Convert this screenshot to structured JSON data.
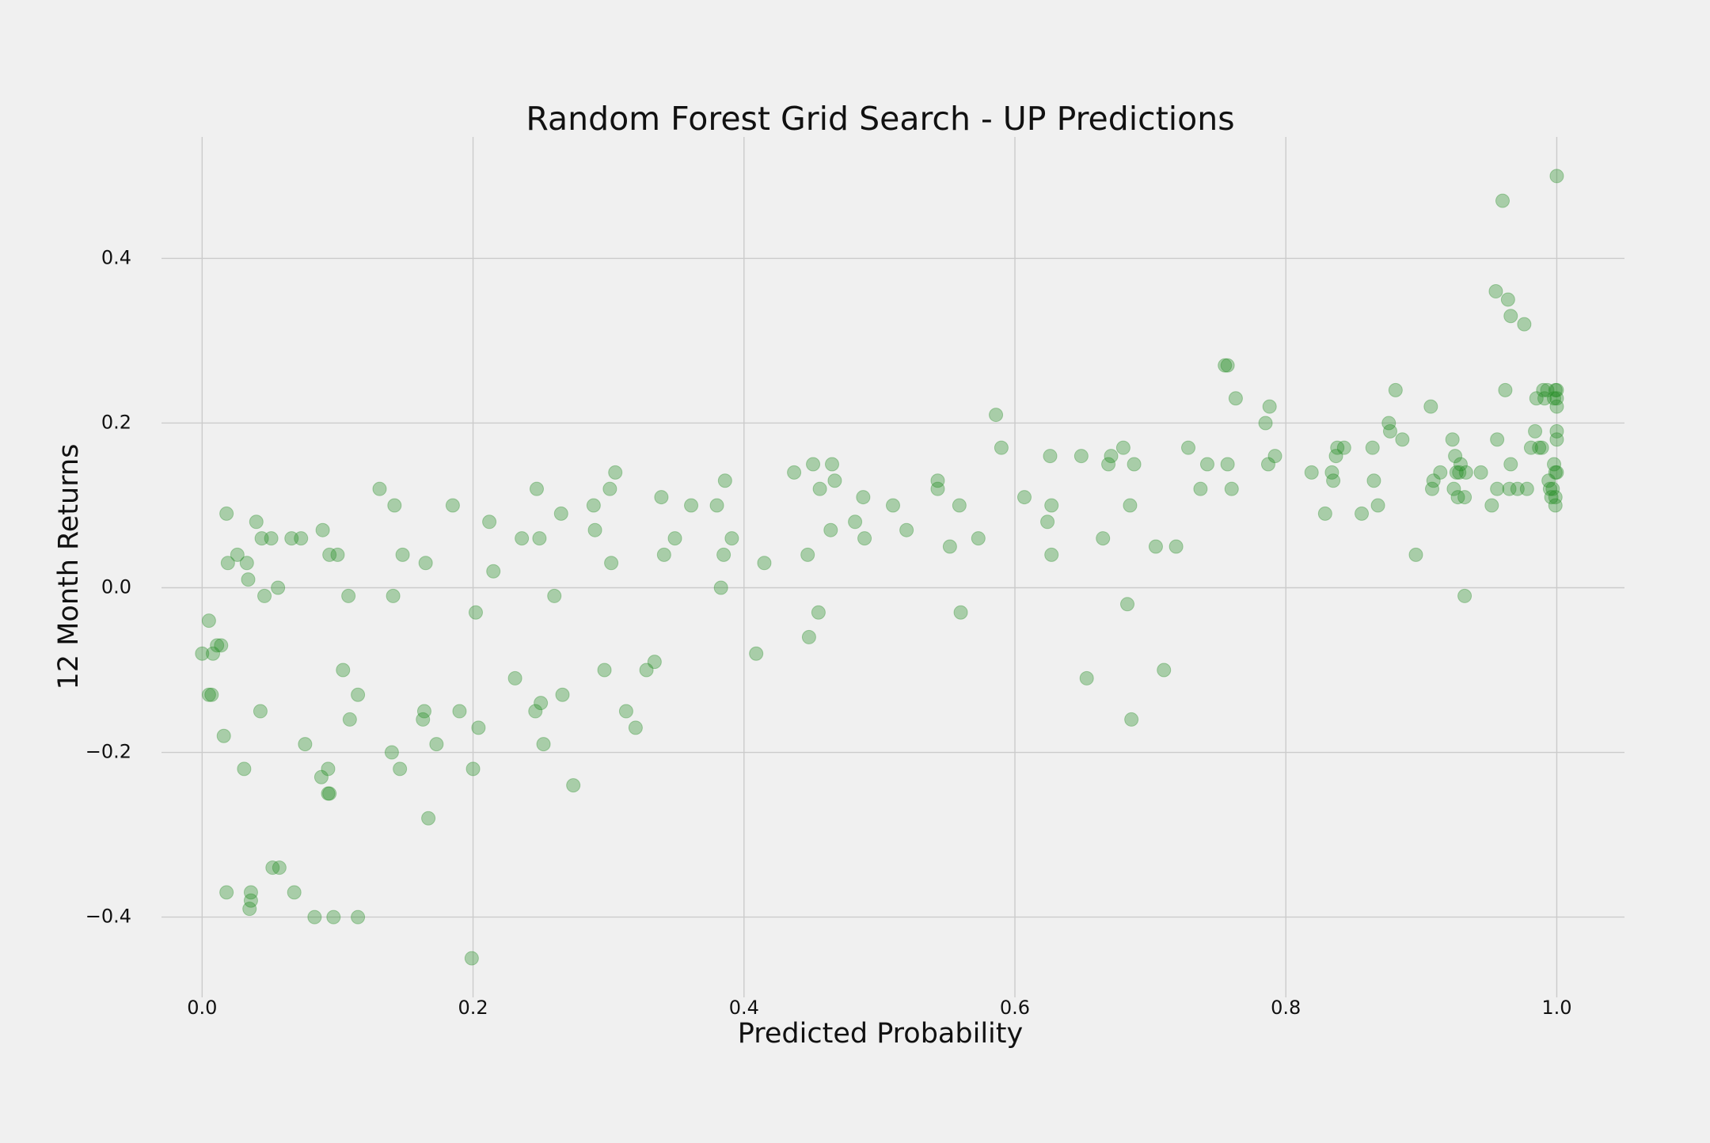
{
  "chart_data": {
    "type": "scatter",
    "title": "Random Forest Grid Search - UP Predictions",
    "x_label": "Predicted Probability",
    "y_label": "12 Month Returns",
    "color": "#228b22",
    "grid": true,
    "xlim": [
      -0.03,
      1.05
    ],
    "ylim": [
      -0.4975,
      0.5475
    ],
    "xticks": [
      {
        "value": 0,
        "label": "0.0"
      },
      0.2,
      0.4,
      0.6,
      0.8,
      {
        "value": 1,
        "label": "1.0"
      }
    ],
    "yticks": [
      {
        "value": -0.4,
        "label": "−0.4"
      },
      {
        "value": -0.2,
        "label": "−0.2"
      },
      {
        "value": 0,
        "label": "0.0"
      },
      0.2,
      0.4
    ],
    "x": [
      0.0,
      0.005,
      0.005,
      0.007,
      0.008,
      0.011,
      0.014,
      0.016,
      0.018,
      0.019,
      0.018,
      0.026,
      0.031,
      0.033,
      0.034,
      0.035,
      0.036,
      0.036,
      0.04,
      0.043,
      0.044,
      0.046,
      0.051,
      0.052,
      0.056,
      0.057,
      0.066,
      0.068,
      0.073,
      0.076,
      0.083,
      0.088,
      0.089,
      0.093,
      0.093,
      0.094,
      0.094,
      0.097,
      0.1,
      0.104,
      0.108,
      0.109,
      0.115,
      0.115,
      0.131,
      0.14,
      0.141,
      0.142,
      0.146,
      0.148,
      0.163,
      0.164,
      0.165,
      0.167,
      0.173,
      0.185,
      0.19,
      0.199,
      0.2,
      0.202,
      0.204,
      0.212,
      0.215,
      0.231,
      0.236,
      0.246,
      0.247,
      0.249,
      0.25,
      0.252,
      0.26,
      0.265,
      0.266,
      0.274,
      0.289,
      0.29,
      0.297,
      0.301,
      0.302,
      0.305,
      0.313,
      0.32,
      0.328,
      0.334,
      0.339,
      0.341,
      0.349,
      0.361,
      0.38,
      0.383,
      0.385,
      0.386,
      0.391,
      0.409,
      0.415,
      0.437,
      0.447,
      0.448,
      0.451,
      0.455,
      0.456,
      0.464,
      0.465,
      0.467,
      0.482,
      0.488,
      0.489,
      0.51,
      0.52,
      0.543,
      0.543,
      0.552,
      0.559,
      0.56,
      0.573,
      0.586,
      0.59,
      0.607,
      0.624,
      0.626,
      0.627,
      0.627,
      0.649,
      0.653,
      0.665,
      0.669,
      0.671,
      0.68,
      0.683,
      0.685,
      0.686,
      0.688,
      0.704,
      0.71,
      0.719,
      0.728,
      0.737,
      0.742,
      0.755,
      0.757,
      0.757,
      0.76,
      0.763,
      0.785,
      0.787,
      0.788,
      0.792,
      0.819,
      0.829,
      0.834,
      0.835,
      0.837,
      0.838,
      0.843,
      0.856,
      0.864,
      0.865,
      0.868,
      0.876,
      0.877,
      0.881,
      0.886,
      0.896,
      0.907,
      0.908,
      0.909,
      0.914,
      0.923,
      0.924,
      0.925,
      0.926,
      0.928,
      0.927,
      0.929,
      0.932,
      0.932,
      0.933,
      0.944,
      0.952,
      0.955,
      0.956,
      0.956,
      0.96,
      0.962,
      0.964,
      0.965,
      0.966,
      0.966,
      0.971,
      0.976,
      0.978,
      0.981,
      0.984,
      0.985,
      0.987,
      0.989,
      0.99,
      0.991,
      0.993,
      0.994,
      0.995,
      0.996,
      0.997,
      0.998,
      0.998,
      0.999,
      0.999,
      0.999,
      0.999,
      1.0,
      1.0,
      1.0,
      1.0,
      1.0,
      1.0,
      1.0
    ],
    "values": [
      -0.08,
      -0.04,
      -0.13,
      -0.13,
      -0.08,
      -0.07,
      -0.07,
      -0.18,
      0.09,
      0.03,
      -0.37,
      0.04,
      -0.22,
      0.03,
      0.01,
      -0.39,
      -0.38,
      -0.37,
      0.08,
      -0.15,
      0.06,
      -0.01,
      0.06,
      -0.34,
      0.0,
      -0.34,
      0.06,
      -0.37,
      0.06,
      -0.19,
      -0.4,
      -0.23,
      0.07,
      -0.22,
      -0.25,
      -0.25,
      0.04,
      -0.4,
      0.04,
      -0.1,
      -0.01,
      -0.16,
      -0.13,
      -0.4,
      0.12,
      -0.2,
      -0.01,
      0.1,
      -0.22,
      0.04,
      -0.16,
      -0.15,
      0.03,
      -0.28,
      -0.19,
      0.1,
      -0.15,
      -0.45,
      -0.22,
      -0.03,
      -0.17,
      0.08,
      0.02,
      -0.11,
      0.06,
      -0.15,
      0.12,
      0.06,
      -0.14,
      -0.19,
      -0.01,
      0.09,
      -0.13,
      -0.24,
      0.1,
      0.07,
      -0.1,
      0.12,
      0.03,
      0.14,
      -0.15,
      -0.17,
      -0.1,
      -0.09,
      0.11,
      0.04,
      0.06,
      0.1,
      0.1,
      0.0,
      0.04,
      0.13,
      0.06,
      -0.08,
      0.03,
      0.14,
      0.04,
      -0.06,
      0.15,
      -0.03,
      0.12,
      0.07,
      0.15,
      0.13,
      0.08,
      0.11,
      0.06,
      0.1,
      0.07,
      0.13,
      0.12,
      0.05,
      0.1,
      -0.03,
      0.06,
      0.21,
      0.17,
      0.11,
      0.08,
      0.16,
      0.04,
      0.1,
      0.16,
      -0.11,
      0.06,
      0.15,
      0.16,
      0.17,
      -0.02,
      0.1,
      -0.16,
      0.15,
      0.05,
      -0.1,
      0.05,
      0.17,
      0.12,
      0.15,
      0.27,
      0.27,
      0.15,
      0.12,
      0.23,
      0.2,
      0.15,
      0.22,
      0.16,
      0.14,
      0.09,
      0.14,
      0.13,
      0.16,
      0.17,
      0.17,
      0.09,
      0.17,
      0.13,
      0.1,
      0.2,
      0.19,
      0.24,
      0.18,
      0.04,
      0.22,
      0.12,
      0.13,
      0.14,
      0.18,
      0.12,
      0.16,
      0.14,
      0.14,
      0.11,
      0.15,
      -0.01,
      0.11,
      0.14,
      0.14,
      0.1,
      0.36,
      0.12,
      0.18,
      0.47,
      0.24,
      0.35,
      0.12,
      0.15,
      0.33,
      0.12,
      0.32,
      0.12,
      0.17,
      0.19,
      0.23,
      0.17,
      0.17,
      0.24,
      0.23,
      0.24,
      0.13,
      0.12,
      0.11,
      0.12,
      0.23,
      0.15,
      0.11,
      0.24,
      0.14,
      0.1,
      0.5,
      0.23,
      0.22,
      0.19,
      0.18,
      0.14,
      0.24
    ]
  }
}
